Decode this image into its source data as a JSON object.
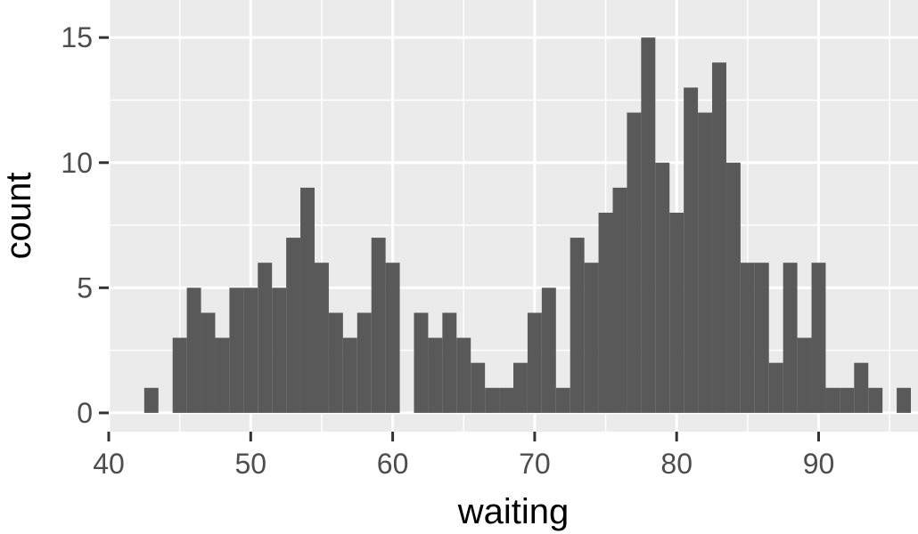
{
  "chart_data": {
    "type": "bar",
    "subtype": "histogram",
    "title": "",
    "xlabel": "waiting",
    "ylabel": "count",
    "xlim": [
      40,
      97
    ],
    "ylim": [
      0,
      15
    ],
    "x_ticks": [
      40,
      50,
      60,
      70,
      80,
      90
    ],
    "y_ticks": [
      0,
      5,
      10,
      15
    ],
    "grid": true,
    "legend": "none",
    "binwidth": 1,
    "x": [
      43,
      44,
      45,
      46,
      47,
      48,
      49,
      50,
      51,
      52,
      53,
      54,
      55,
      56,
      57,
      58,
      59,
      60,
      61,
      62,
      63,
      64,
      65,
      66,
      67,
      68,
      69,
      70,
      71,
      72,
      73,
      74,
      75,
      76,
      77,
      78,
      79,
      80,
      81,
      82,
      83,
      84,
      85,
      86,
      87,
      88,
      89,
      90,
      91,
      92,
      93,
      94,
      95,
      96
    ],
    "values": [
      1,
      0,
      3,
      5,
      4,
      3,
      5,
      5,
      6,
      5,
      7,
      9,
      6,
      4,
      3,
      4,
      7,
      6,
      0,
      4,
      3,
      4,
      3,
      2,
      1,
      1,
      2,
      4,
      5,
      1,
      7,
      6,
      8,
      9,
      12,
      15,
      10,
      8,
      13,
      12,
      14,
      10,
      6,
      6,
      2,
      6,
      3,
      6,
      1,
      1,
      2,
      1,
      0,
      1
    ],
    "colors": {
      "bar": "#595959",
      "panel": "#ebebeb",
      "grid": "#ffffff",
      "tick": "#333333"
    }
  }
}
